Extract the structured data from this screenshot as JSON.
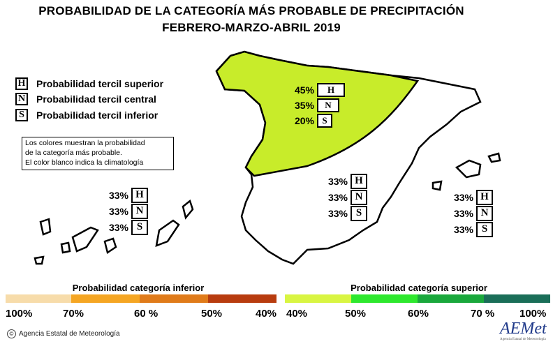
{
  "title": {
    "line1": "PROBABILIDAD DE LA CATEGORÍA MÁS PROBABLE DE PRECIPITACIÓN",
    "line2": "FEBRERO-MARZO-ABRIL 2019"
  },
  "legend": {
    "items": [
      {
        "letter": "H",
        "label": "Probabilidad tercil superior"
      },
      {
        "letter": "N",
        "label": "Probabilidad tercil central"
      },
      {
        "letter": "S",
        "label": "Probabilidad tercil inferior"
      }
    ]
  },
  "note": {
    "line1": "Los colores muestran la probabilidad",
    "line2": "de la categoría más probable.",
    "line3": "El color blanco indica la climatología"
  },
  "regions": {
    "north": {
      "H": "45%",
      "N": "35%",
      "S": "20%"
    },
    "south": {
      "H": "33%",
      "N": "33%",
      "S": "33%"
    },
    "canarias": {
      "H": "33%",
      "N": "33%",
      "S": "33%"
    },
    "baleares": {
      "H": "33%",
      "N": "33%",
      "S": "33%"
    }
  },
  "colors": {
    "north_fill": "#c8ec2a",
    "inferior_scale": [
      "#f7dcaa",
      "#f5a623",
      "#e07b1a",
      "#b83c0f"
    ],
    "superior_scale": [
      "#d9f542",
      "#2ee82e",
      "#1aa83c",
      "#1a6e58"
    ]
  },
  "scale": {
    "inferior_title": "Probabilidad categoría inferior",
    "superior_title": "Probabilidad categoría superior",
    "inferior_ticks": [
      "100%",
      "70%",
      "60 %",
      "50%",
      "40%"
    ],
    "superior_ticks": [
      "40%",
      "50%",
      "60%",
      "70 %",
      "100%"
    ]
  },
  "footer": {
    "copyright": "Agencia Estatal de Meteorología",
    "logo": "AEMet",
    "logo_sub": "Agencia Estatal de Meteorología"
  }
}
